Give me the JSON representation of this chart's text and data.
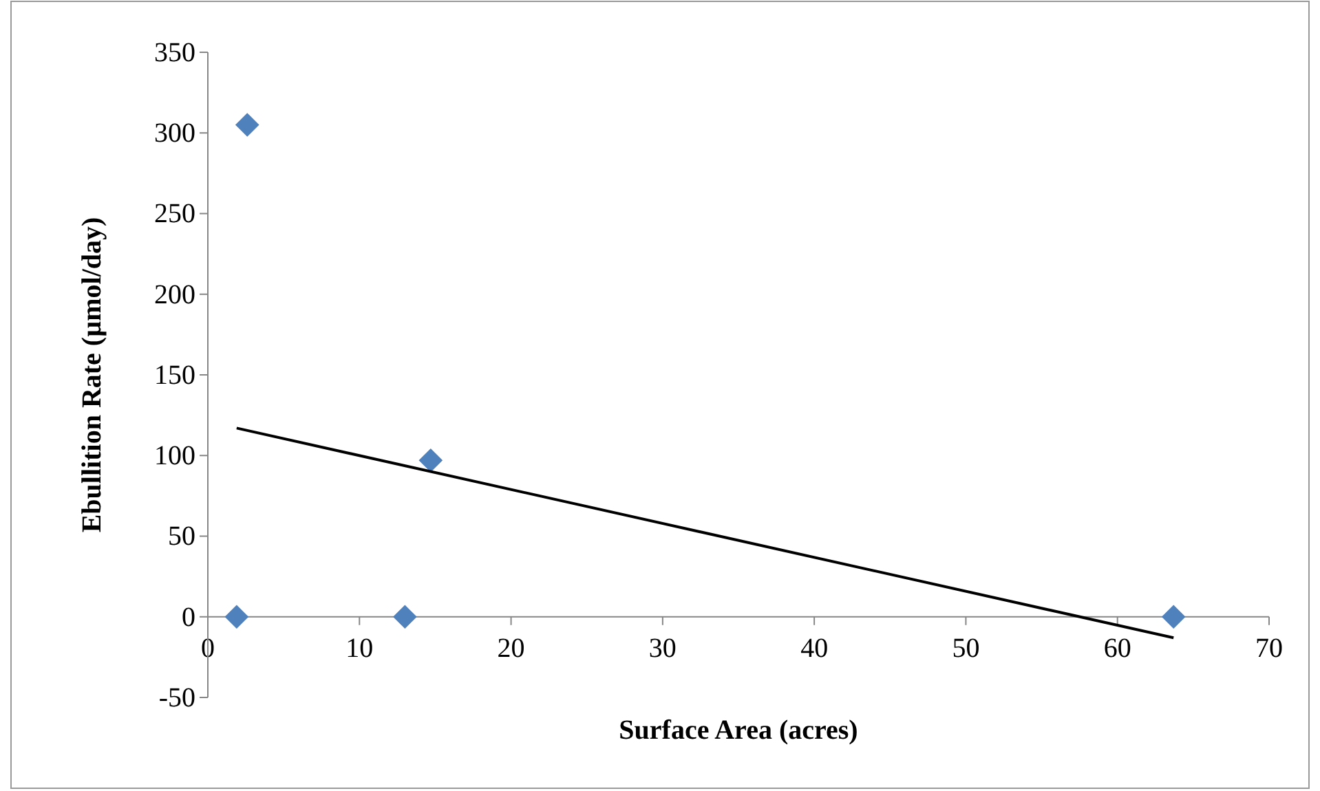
{
  "chart_data": {
    "type": "scatter",
    "xlabel": "Surface Area (acres)",
    "ylabel": "Ebullition Rate (µmol/day)",
    "xlim": [
      0,
      70
    ],
    "xticks": [
      0,
      10,
      20,
      30,
      40,
      50,
      60,
      70
    ],
    "ylim": [
      -50,
      350
    ],
    "yticks": [
      -50,
      0,
      50,
      100,
      150,
      200,
      250,
      300,
      350
    ],
    "grid": false,
    "marker": "diamond",
    "series": [
      {
        "color": "#4f81bd",
        "x": [
          1.9,
          2.6,
          13,
          14.7,
          63.7
        ],
        "values": [
          0,
          305,
          0,
          97,
          0
        ]
      },
      {
        "type": "line",
        "color": "#000000",
        "marker": "none",
        "line_style": "solid",
        "x": [
          1.9,
          63.7
        ],
        "values": [
          117,
          -13
        ]
      }
    ]
  }
}
